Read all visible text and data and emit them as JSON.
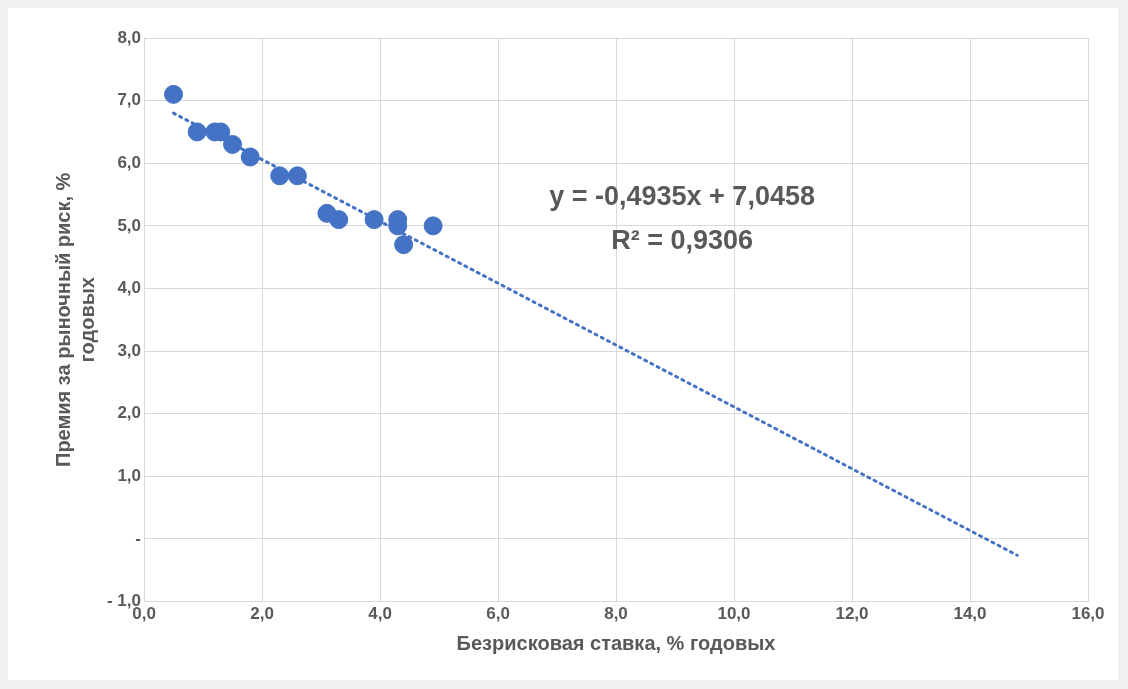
{
  "chart_data": {
    "type": "scatter",
    "xlabel": "Безрисковая ставка, % годовых",
    "ylabel": "Премия за рыночный риск, % годовых",
    "xlim": [
      0,
      16
    ],
    "ylim": [
      -1,
      8
    ],
    "xticks": [
      {
        "value": 0,
        "label": "0,0"
      },
      {
        "value": 2,
        "label": "2,0"
      },
      {
        "value": 4,
        "label": "4,0"
      },
      {
        "value": 6,
        "label": "6,0"
      },
      {
        "value": 8,
        "label": "8,0"
      },
      {
        "value": 10,
        "label": "10,0"
      },
      {
        "value": 12,
        "label": "12,0"
      },
      {
        "value": 14,
        "label": "14,0"
      },
      {
        "value": 16,
        "label": "16,0"
      }
    ],
    "yticks": [
      {
        "value": -1,
        "label": "- 1,0"
      },
      {
        "value": 0,
        "label": "-"
      },
      {
        "value": 1,
        "label": "1,0"
      },
      {
        "value": 2,
        "label": "2,0"
      },
      {
        "value": 3,
        "label": "3,0"
      },
      {
        "value": 4,
        "label": "4,0"
      },
      {
        "value": 5,
        "label": "5,0"
      },
      {
        "value": 6,
        "label": "6,0"
      },
      {
        "value": 7,
        "label": "7,0"
      },
      {
        "value": 8,
        "label": "8,0"
      }
    ],
    "grid": true,
    "legend": false,
    "marker": "circle",
    "series": [
      {
        "color": "#4472c4",
        "x": [
          0.5,
          0.9,
          1.2,
          1.3,
          1.5,
          1.8,
          2.3,
          2.6,
          3.1,
          3.3,
          3.9,
          4.3,
          4.3,
          4.4,
          4.9
        ],
        "values": [
          7.1,
          6.5,
          6.5,
          6.5,
          6.3,
          6.1,
          5.8,
          5.8,
          5.2,
          5.1,
          5.1,
          5.1,
          5.0,
          4.7,
          5.0
        ]
      },
      {
        "type": "line",
        "color": "#4472c4",
        "line_style": "dotted",
        "marker": "none",
        "x": [
          0.5,
          14.8
        ],
        "values": [
          6.8,
          -0.26
        ]
      }
    ],
    "annotations": [
      "y = -0,4935x + 7,0458",
      "R² = 0,9306"
    ]
  }
}
